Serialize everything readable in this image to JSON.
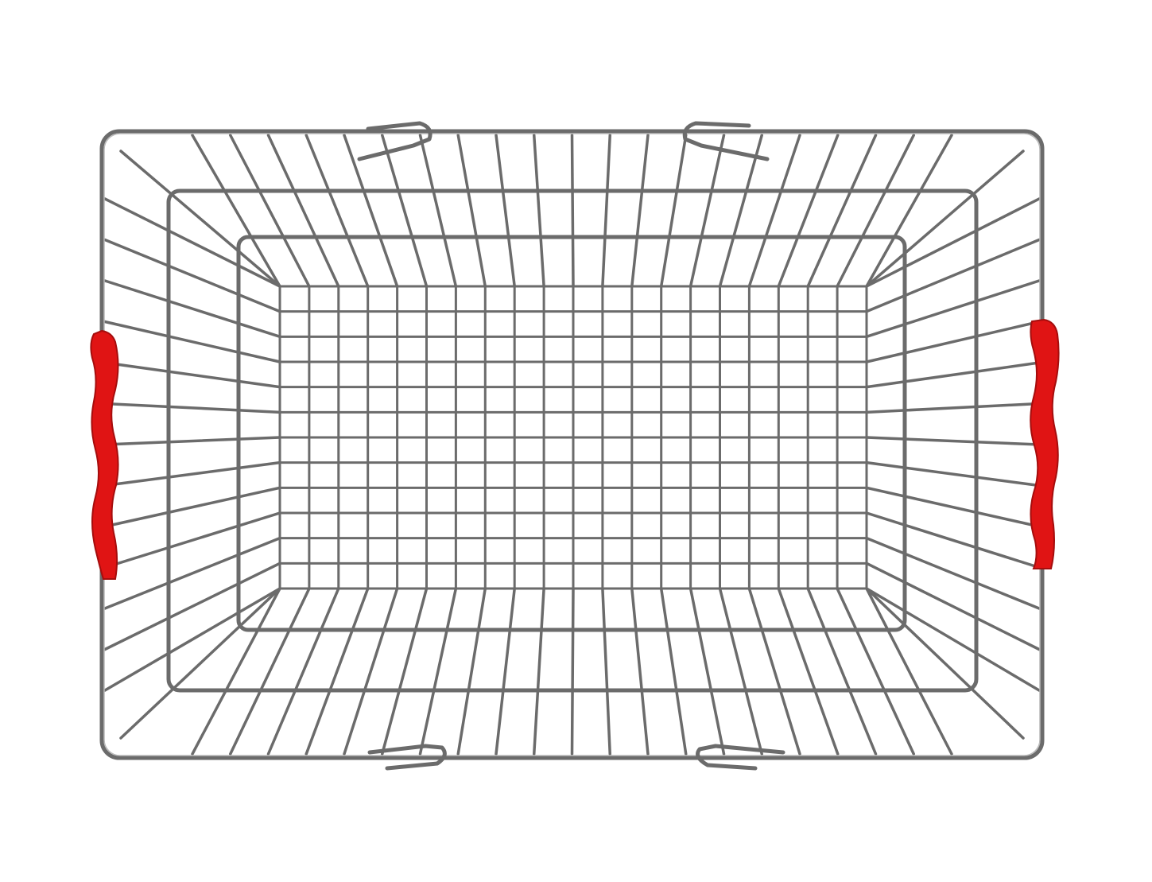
{
  "subject": "wire-shopping-basket",
  "view": "top-down",
  "background_color": "#ffffff",
  "wire_color": "#6b6b6b",
  "wire_highlight_color": "#b9b9b9",
  "handle_color": "#e01414",
  "handle_shadow_color": "#a50d0d",
  "handles": [
    "left-handle",
    "right-handle"
  ],
  "top_hinges": 2,
  "bottom_hinges": 2,
  "floor_grid": {
    "columns": 20,
    "rows": 12
  }
}
